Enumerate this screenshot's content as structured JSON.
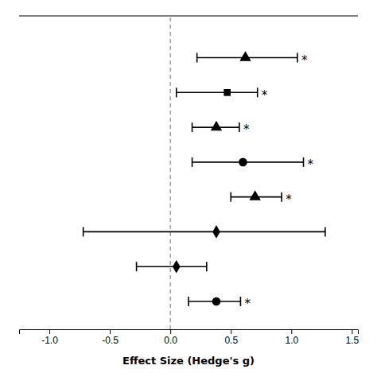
{
  "chart_data": {
    "type": "forest",
    "orientation": "horizontal",
    "xlabel": "Effect Size (Hedge's g)",
    "xlim": [
      -1.25,
      1.55
    ],
    "xticks": [
      {
        "value": -1.0,
        "label": "-1.0"
      },
      -0.5,
      {
        "value": 0.0,
        "label": "0.0"
      },
      0.5,
      {
        "value": 1.0,
        "label": "1.0"
      },
      1.5
    ],
    "ylim": [
      0.2,
      9.2
    ],
    "tick_labels": "x",
    "color": "black",
    "reference_line": {
      "x": 0.0,
      "color": "#999999",
      "line_style": "dashed"
    },
    "series": [
      {
        "marker": "triangle",
        "y": [
          8
        ],
        "values": [
          0.62
        ],
        "ci_low": [
          0.22
        ],
        "ci_high": [
          1.05
        ],
        "annotation": "*"
      },
      {
        "marker": "square",
        "y": [
          7
        ],
        "values": [
          0.47
        ],
        "ci_low": [
          0.05
        ],
        "ci_high": [
          0.72
        ],
        "annotation": "*"
      },
      {
        "marker": "triangle",
        "y": [
          6
        ],
        "values": [
          0.38
        ],
        "ci_low": [
          0.18
        ],
        "ci_high": [
          0.57
        ],
        "annotation": "*"
      },
      {
        "marker": "circle",
        "y": [
          5
        ],
        "values": [
          0.6
        ],
        "ci_low": [
          0.18
        ],
        "ci_high": [
          1.1
        ],
        "annotation": "*"
      },
      {
        "marker": "triangle",
        "y": [
          4
        ],
        "values": [
          0.7
        ],
        "ci_low": [
          0.5
        ],
        "ci_high": [
          0.92
        ],
        "annotation": "*"
      },
      {
        "marker": "diamond",
        "y": [
          3
        ],
        "values": [
          0.38
        ],
        "ci_low": [
          -0.72
        ],
        "ci_high": [
          1.28
        ]
      },
      {
        "marker": "diamond",
        "y": [
          2
        ],
        "values": [
          0.05
        ],
        "ci_low": [
          -0.28
        ],
        "ci_high": [
          0.3
        ]
      },
      {
        "marker": "circle",
        "y": [
          1
        ],
        "values": [
          0.38
        ],
        "ci_low": [
          0.15
        ],
        "ci_high": [
          0.58
        ],
        "annotation": "*"
      }
    ]
  }
}
